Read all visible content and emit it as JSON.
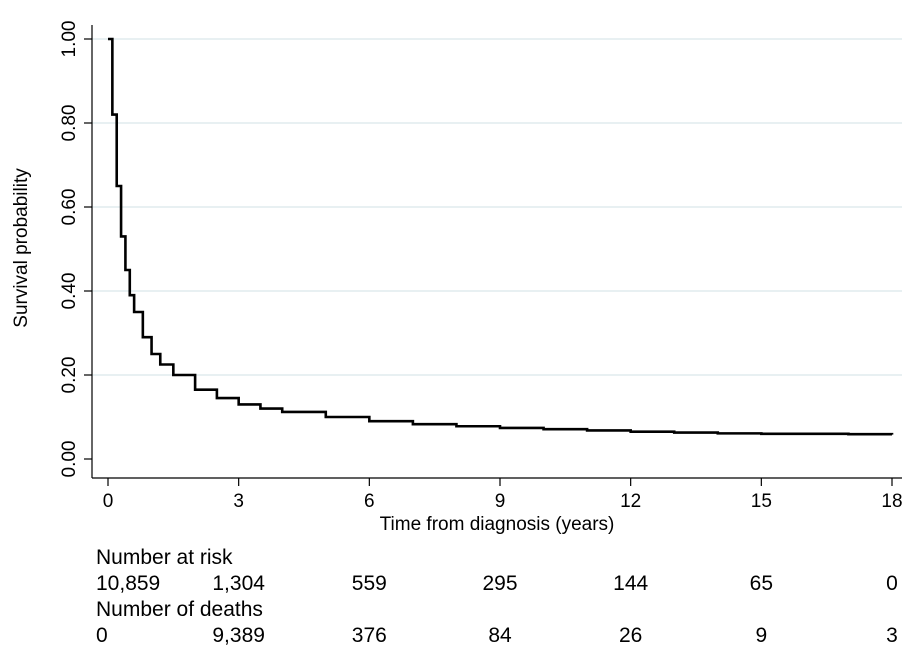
{
  "chart_data": {
    "type": "line",
    "title": "",
    "xlabel": "Time from diagnosis (years)",
    "ylabel": "Survival probability",
    "xlim": [
      0,
      18
    ],
    "ylim": [
      0,
      1
    ],
    "x_ticks": [
      "0",
      "3",
      "6",
      "9",
      "12",
      "15",
      "18"
    ],
    "y_ticks": [
      "0.00",
      "0.20",
      "0.40",
      "0.60",
      "0.80",
      "1.00"
    ],
    "grid": "horizontal",
    "series": [
      {
        "color": "#000000",
        "step": true,
        "x": [
          0,
          0.1,
          0.2,
          0.3,
          0.4,
          0.5,
          0.6,
          0.8,
          1.0,
          1.2,
          1.5,
          2.0,
          2.5,
          3.0,
          3.5,
          4.0,
          5.0,
          6.0,
          7.0,
          8.0,
          9.0,
          10.0,
          11.0,
          12.0,
          13.0,
          14.0,
          15.0,
          16.0,
          17.0,
          18.0
        ],
        "y": [
          1.0,
          0.82,
          0.65,
          0.53,
          0.45,
          0.39,
          0.35,
          0.29,
          0.25,
          0.225,
          0.2,
          0.165,
          0.145,
          0.13,
          0.12,
          0.112,
          0.1,
          0.09,
          0.083,
          0.078,
          0.074,
          0.071,
          0.068,
          0.065,
          0.063,
          0.061,
          0.06,
          0.06,
          0.059,
          0.058
        ]
      }
    ],
    "risk_table": {
      "risk_label": "Number at risk",
      "deaths_label": "Number of deaths",
      "at_risk": [
        "10,859",
        "1,304",
        "559",
        "295",
        "144",
        "65",
        "0"
      ],
      "deaths": [
        "0",
        "9,389",
        "376",
        "84",
        "26",
        "9",
        "3"
      ]
    }
  }
}
